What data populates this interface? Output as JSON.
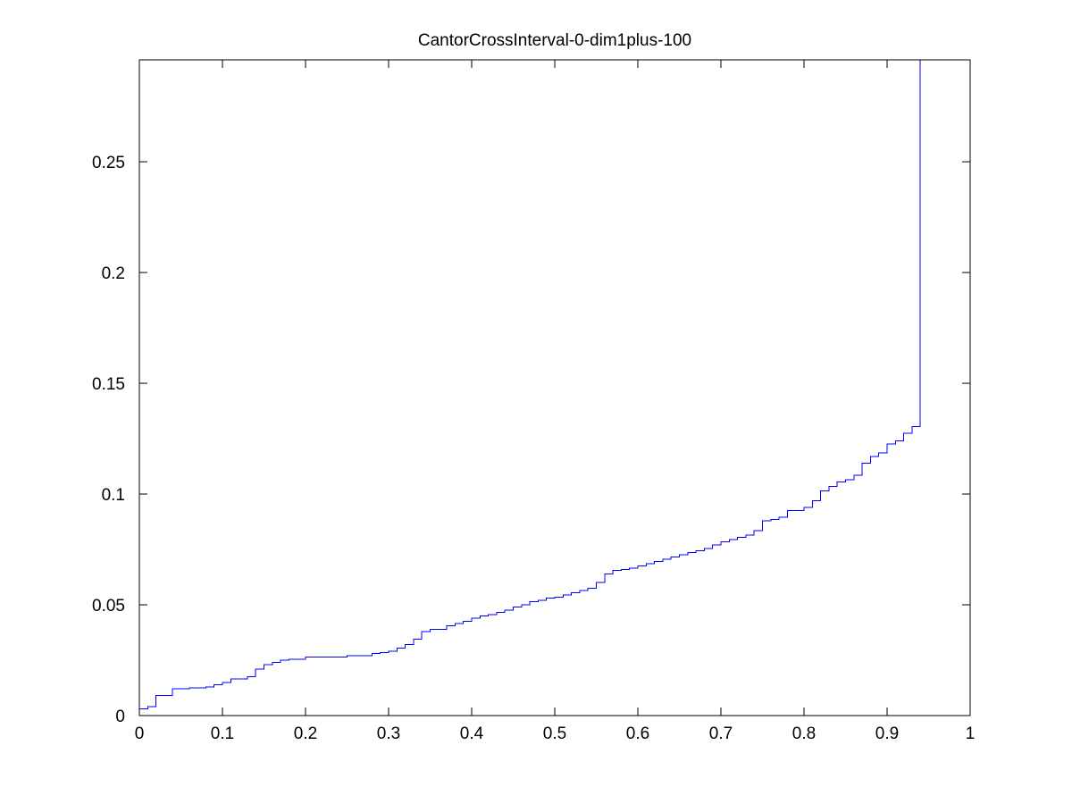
{
  "chart_data": {
    "type": "line",
    "step": true,
    "title": "CantorCrossInterval-0-dim1plus-100",
    "xlabel": "",
    "ylabel": "",
    "xlim": [
      0,
      1
    ],
    "ylim": [
      0,
      0.296
    ],
    "xticks": [
      0,
      0.1,
      0.2,
      0.3,
      0.4,
      0.5,
      0.6,
      0.7,
      0.8,
      0.9,
      1
    ],
    "xtick_labels": [
      "0",
      "0.1",
      "0.2",
      "0.3",
      "0.4",
      "0.5",
      "0.6",
      "0.7",
      "0.8",
      "0.9",
      "1"
    ],
    "yticks": [
      0,
      0.05,
      0.1,
      0.15,
      0.2,
      0.25
    ],
    "ytick_labels": [
      "0",
      "0.05",
      "0.1",
      "0.15",
      "0.2",
      "0.25"
    ],
    "grid": false,
    "series": [
      {
        "color": "#0000ff",
        "x": [
          0,
          0.01,
          0.02,
          0.04,
          0.06,
          0.08,
          0.09,
          0.1,
          0.11,
          0.13,
          0.14,
          0.15,
          0.16,
          0.17,
          0.18,
          0.2,
          0.25,
          0.28,
          0.29,
          0.3,
          0.31,
          0.32,
          0.33,
          0.34,
          0.35,
          0.37,
          0.38,
          0.39,
          0.4,
          0.41,
          0.42,
          0.43,
          0.44,
          0.45,
          0.46,
          0.47,
          0.48,
          0.49,
          0.5,
          0.51,
          0.52,
          0.53,
          0.54,
          0.55,
          0.56,
          0.57,
          0.58,
          0.59,
          0.6,
          0.61,
          0.62,
          0.63,
          0.64,
          0.65,
          0.66,
          0.67,
          0.68,
          0.69,
          0.7,
          0.71,
          0.72,
          0.73,
          0.74,
          0.75,
          0.76,
          0.77,
          0.78,
          0.8,
          0.81,
          0.82,
          0.83,
          0.84,
          0.85,
          0.86,
          0.87,
          0.88,
          0.89,
          0.9,
          0.91,
          0.92,
          0.93,
          0.94,
          0.95,
          0.96,
          0.97,
          0.98,
          0.99
        ],
        "y": [
          0.003,
          0.004,
          0.009,
          0.012,
          0.0125,
          0.013,
          0.014,
          0.015,
          0.0165,
          0.0175,
          0.021,
          0.023,
          0.024,
          0.025,
          0.0255,
          0.0265,
          0.027,
          0.028,
          0.0285,
          0.029,
          0.0305,
          0.032,
          0.0345,
          0.038,
          0.039,
          0.0405,
          0.0415,
          0.0425,
          0.044,
          0.045,
          0.0455,
          0.0465,
          0.0475,
          0.049,
          0.05,
          0.0515,
          0.052,
          0.053,
          0.0535,
          0.0545,
          0.0555,
          0.0565,
          0.0575,
          0.06,
          0.064,
          0.0655,
          0.066,
          0.0665,
          0.0675,
          0.0685,
          0.0695,
          0.0705,
          0.0715,
          0.0725,
          0.0735,
          0.0745,
          0.0755,
          0.077,
          0.0785,
          0.0795,
          0.0805,
          0.0815,
          0.0835,
          0.088,
          0.0885,
          0.0895,
          0.0925,
          0.094,
          0.097,
          0.1015,
          0.1035,
          0.1055,
          0.1065,
          0.1085,
          0.114,
          0.117,
          0.1185,
          0.1225,
          0.124,
          0.1275,
          0.1305,
          0.296,
          0.296,
          0.296,
          0.296,
          0.296,
          0.296
        ],
        "end_x": 0.99
      }
    ]
  }
}
